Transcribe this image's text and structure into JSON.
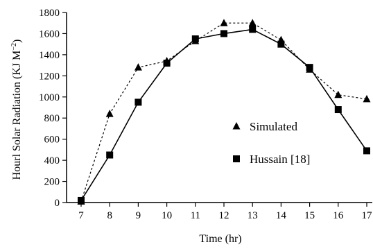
{
  "chart_data": {
    "type": "line",
    "title": "",
    "xlabel": "Time (hr)",
    "ylabel": "Hourl Solar Radiation (KJ M",
    "ylabel_sup": "−2",
    "ylabel_close": ")",
    "x": [
      7,
      8,
      9,
      10,
      11,
      12,
      13,
      14,
      15,
      16,
      17
    ],
    "xlim": [
      7,
      17
    ],
    "ylim": [
      0,
      1800
    ],
    "xticks": [
      "7",
      "8",
      "9",
      "10",
      "11",
      "12",
      "13",
      "14",
      "15",
      "16",
      "17"
    ],
    "yticks": [
      "0",
      "200",
      "400",
      "600",
      "800",
      "1000",
      "1200",
      "1400",
      "1600",
      "1800"
    ],
    "ytick_values": [
      0,
      200,
      400,
      600,
      800,
      1000,
      1200,
      1400,
      1600,
      1800
    ],
    "grid": false,
    "legend_position": "center-right",
    "series": [
      {
        "name": "Simulated",
        "marker": "triangle",
        "line_style": "dashed",
        "color": "#000000",
        "values": [
          10,
          840,
          1280,
          1340,
          1530,
          1700,
          1700,
          1540,
          1260,
          1020,
          980
        ]
      },
      {
        "name": "Hussain [18]",
        "marker": "square",
        "line_style": "solid",
        "color": "#000000",
        "values": [
          20,
          450,
          950,
          1320,
          1550,
          1600,
          1640,
          1500,
          1280,
          880,
          490
        ]
      }
    ]
  }
}
